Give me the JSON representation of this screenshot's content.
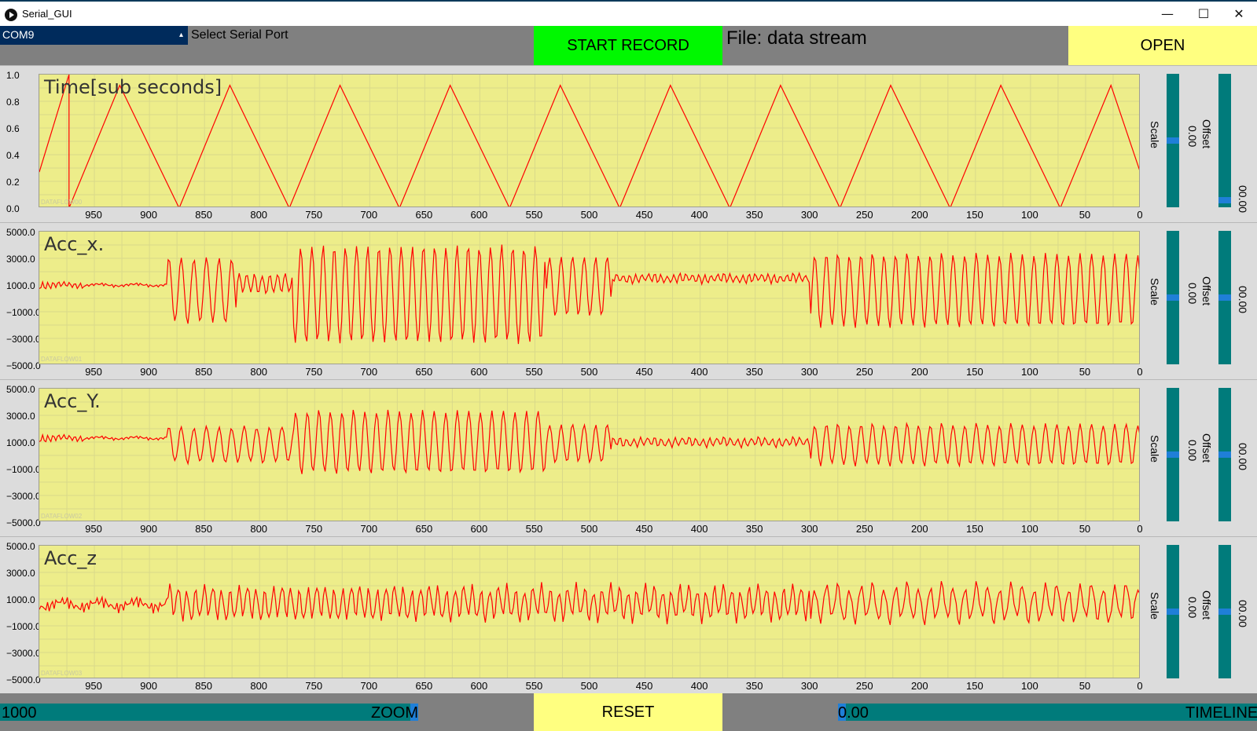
{
  "window": {
    "title": "Serial_GUI",
    "minimize_glyph": "—",
    "maximize_glyph": "☐",
    "close_glyph": "✕"
  },
  "topbar": {
    "port_value": "COM9",
    "port_arrow": "▴",
    "port_label": "Select Serial Port",
    "record_label": "START RECORD",
    "file_label": "File: data stream",
    "open_label": "OPEN"
  },
  "panels": [
    {
      "title": "Time[sub seconds]",
      "id_label": "DATAFLOW00",
      "scale_label": "Scale",
      "scale_value": "0.00",
      "offset_label": "Offset",
      "offset_value": "00.00",
      "scale_level": 0.5,
      "offset_level": 0.03
    },
    {
      "title": "Acc_x.",
      "id_label": "DATAFLOW01",
      "scale_label": "Scale",
      "scale_value": "0.00",
      "offset_label": "Offset",
      "offset_value": "00.00",
      "scale_level": 0.5,
      "offset_level": 0.5
    },
    {
      "title": "Acc_Y.",
      "id_label": "DATAFLOW02",
      "scale_label": "Scale",
      "scale_value": "0.00",
      "offset_label": "Offset",
      "offset_value": "00.00",
      "scale_level": 0.5,
      "offset_level": 0.5
    },
    {
      "title": "Acc_z",
      "id_label": "DATAFLOW03",
      "scale_label": "Scale",
      "scale_value": "0.00",
      "offset_label": "Offset",
      "offset_value": "00.00",
      "scale_level": 0.5,
      "offset_level": 0.5
    }
  ],
  "bottombar": {
    "zoom_value": "1000",
    "zoom_label": "ZOOM",
    "reset_label": "RESET",
    "timeline_value": "0.00",
    "timeline_label": "TIMELINE"
  },
  "chart_data": [
    {
      "type": "line",
      "title": "Time[sub seconds]",
      "xlim": [
        1000,
        0
      ],
      "ylim": [
        0,
        1
      ],
      "yticks": [
        "1.0",
        "0.8",
        "0.6",
        "0.4",
        "0.2",
        "0.0"
      ],
      "xticks": [
        "950",
        "900",
        "850",
        "800",
        "750",
        "700",
        "650",
        "600",
        "550",
        "500",
        "450",
        "400",
        "350",
        "300",
        "250",
        "200",
        "150",
        "100",
        "50",
        "0"
      ],
      "color": "#ff0000",
      "grid": true,
      "series": [
        {
          "x": [
            1000,
            973,
            973,
            927,
            873,
            873,
            827,
            773,
            773,
            727,
            673,
            673,
            627,
            573,
            573,
            527,
            473,
            473,
            427,
            373,
            373,
            327,
            273,
            273,
            227,
            173,
            173,
            127,
            73,
            73,
            27,
            0
          ],
          "y": [
            0.27,
            1.0,
            0.0,
            0.92,
            0.0,
            0.0,
            0.92,
            0.0,
            0.0,
            0.92,
            0.0,
            0.0,
            0.92,
            0.0,
            0.0,
            0.92,
            0.0,
            0.0,
            0.92,
            0.0,
            0.0,
            0.92,
            0.0,
            0.0,
            0.92,
            0.0,
            0.0,
            0.92,
            0.0,
            0.0,
            0.92,
            0.26
          ]
        }
      ]
    },
    {
      "type": "line",
      "title": "Acc_x.",
      "xlim": [
        1000,
        0
      ],
      "ylim": [
        -5000,
        5000
      ],
      "yticks": [
        "5000.0",
        "3000.0",
        "1000.0",
        "−1000.0",
        "−3000.0",
        "−5000.0"
      ],
      "xticks": [
        "950",
        "900",
        "850",
        "800",
        "750",
        "700",
        "650",
        "600",
        "550",
        "500",
        "450",
        "400",
        "350",
        "300",
        "250",
        "200",
        "150",
        "100",
        "50",
        "0"
      ],
      "color": "#ff0000",
      "grid": true
    },
    {
      "type": "line",
      "title": "Acc_Y.",
      "xlim": [
        1000,
        0
      ],
      "ylim": [
        -5000,
        5000
      ],
      "yticks": [
        "5000.0",
        "3000.0",
        "1000.0",
        "−1000.0",
        "−3000.0",
        "−5000.0"
      ],
      "xticks": [
        "950",
        "900",
        "850",
        "800",
        "750",
        "700",
        "650",
        "600",
        "550",
        "500",
        "450",
        "400",
        "350",
        "300",
        "250",
        "200",
        "150",
        "100",
        "50",
        "0"
      ],
      "color": "#ff0000",
      "grid": true
    },
    {
      "type": "line",
      "title": "Acc_z",
      "xlim": [
        1000,
        0
      ],
      "ylim": [
        -5000,
        5000
      ],
      "yticks": [
        "5000.0",
        "3000.0",
        "1000.0",
        "−1000.0",
        "−3000.0",
        "−5000.0"
      ],
      "xticks": [
        "950",
        "900",
        "850",
        "800",
        "750",
        "700",
        "650",
        "600",
        "550",
        "500",
        "450",
        "400",
        "350",
        "300",
        "250",
        "200",
        "150",
        "100",
        "50",
        "0"
      ],
      "color": "#ff0000",
      "grid": true
    }
  ]
}
